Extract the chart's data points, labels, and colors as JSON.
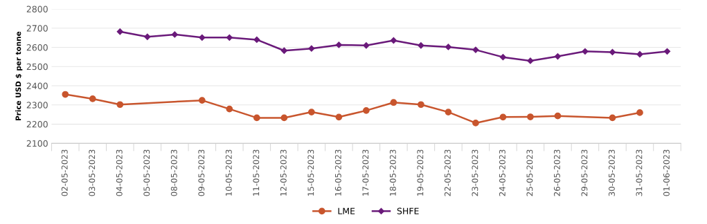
{
  "chart_data": {
    "type": "line",
    "ylabel": "Price USD $ per tonne",
    "categories": [
      "02-05-2023",
      "03-05-2023",
      "04-05-2023",
      "05-05-2023",
      "08-05-2023",
      "09-05-2023",
      "10-05-2023",
      "11-05-2023",
      "12-05-2023",
      "15-05-2023",
      "16-05-2023",
      "17-05-2023",
      "18-05-2023",
      "19-05-2023",
      "22-05-2023",
      "23-05-2023",
      "24-05-2023",
      "25-05-2023",
      "26-05-2023",
      "29-05-2023",
      "30-05-2023",
      "31-05-2023",
      "01-06-2023"
    ],
    "series": [
      {
        "name": "LME",
        "color": "#c8552d",
        "marker": "circle",
        "values": [
          2355,
          2332,
          2302,
          null,
          null,
          2324,
          2279,
          2233,
          2233,
          2263,
          2237,
          2271,
          2313,
          2302,
          2263,
          2206,
          2237,
          2238,
          2243,
          null,
          2233,
          2260,
          null
        ]
      },
      {
        "name": "SHFE",
        "color": "#6a1a7a",
        "marker": "diamond",
        "values": [
          null,
          null,
          2682,
          2655,
          2667,
          2651,
          2651,
          2640,
          2583,
          2594,
          2613,
          2610,
          2636,
          2610,
          2602,
          2587,
          2549,
          2530,
          2553,
          2579,
          2575,
          2564,
          2579
        ]
      }
    ],
    "ylim": [
      2100,
      2800
    ],
    "yticks": [
      2100,
      2200,
      2300,
      2400,
      2500,
      2600,
      2700,
      2800
    ],
    "grid": "y",
    "legend": "bottom",
    "line_style": "solid"
  }
}
